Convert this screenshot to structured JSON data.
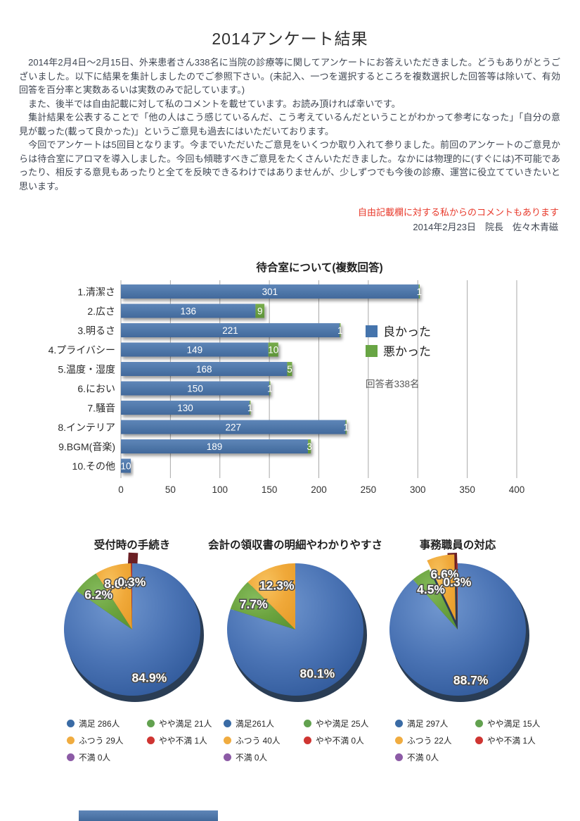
{
  "page": {
    "title": "2014アンケート結果",
    "paragraphs": [
      "　2014年2月4日～2月15日、外来患者さん338名に当院の診療等に関してアンケートにお答えいただきました。どうもありがとうございました。以下に結果を集計しましたのでご参照下さい。(未記入、一つを選択するところを複数選択した回答等は除いて、有効回答を百分率と実数あるいは実数のみで記しています。)",
      "　また、後半では自由記載に対して私のコメントを載せています。お読み頂ければ幸いです。",
      "　集計結果を公表することで「他の人はこう感じているんだ、こう考えているんだということがわかって参考になった」「自分の意見が載った(載って良かった)」というご意見も過去にはいただいております。",
      "　今回でアンケートは5回目となります。今までいただいたご意見をいくつか取り入れて参りました。前回のアンケートのご意見からは待合室にアロマを導入しました。今回も傾聴すべきご意見をたくさんいただきました。なかには物理的に(すぐには)不可能であったり、相反する意見もあったりと全てを反映できるわけではありませんが、少しずつでも今後の診療、運営に役立てていきたいと思います。"
    ],
    "comment_note": "自由記載欄に対する私からのコメントもあります",
    "comment_note_color": "#e8392b",
    "date_line": "2014年2月23日　院長　佐々木青磁"
  },
  "chart_data": [
    {
      "type": "bar",
      "title": "待合室について(複数回答)",
      "orientation": "horizontal",
      "categories": [
        "1.清潔さ",
        "2.広さ",
        "3.明るさ",
        "4.プライバシー",
        "5.温度・湿度",
        "6.におい",
        "7.騒音",
        "8.インテリア",
        "9.BGM(音楽)",
        "10.その他"
      ],
      "series": [
        {
          "name": "良かった",
          "color": "#4574AC",
          "values": [
            301,
            136,
            221,
            149,
            168,
            150,
            130,
            227,
            189,
            10
          ]
        },
        {
          "name": "悪かった",
          "color": "#68A544",
          "values": [
            1,
            9,
            1,
            10,
            5,
            1,
            1,
            1,
            3,
            0
          ]
        }
      ],
      "xticks": [
        0,
        50,
        100,
        150,
        200,
        250,
        300,
        350,
        400
      ],
      "xlim": [
        0,
        400
      ],
      "grid": "vertical",
      "legend_position": "right-inside",
      "legend_note": "回答者338名"
    },
    {
      "type": "pie",
      "title": "受付時の手続き",
      "slices": [
        {
          "label": "満足",
          "count": 286,
          "pct": 84.9,
          "color": "blue"
        },
        {
          "label": "やや満足",
          "count": 21,
          "pct": 6.2,
          "color": "green"
        },
        {
          "label": "ふつう",
          "count": 29,
          "pct": 8.6,
          "color": "orange"
        },
        {
          "label": "やや不満",
          "count": 1,
          "pct": 0.3,
          "color": "red",
          "exploded_block": true
        },
        {
          "label": "不満",
          "count": 0,
          "pct": 0,
          "color": "purple"
        }
      ],
      "legend": [
        {
          "text": "満足 286人",
          "color": "#3A6BA5"
        },
        {
          "text": "やや満足 21人",
          "color": "#62A14F"
        },
        {
          "text": "ふつう 29人",
          "color": "#F0AC40"
        },
        {
          "text": "やや不満 1人",
          "color": "#CF3532"
        },
        {
          "text": "不満 0人",
          "color": "#8C5BA6"
        }
      ]
    },
    {
      "type": "pie",
      "title": "会計の領収書の明細やわかりやすさ",
      "slices": [
        {
          "label": "満足",
          "count": 261,
          "pct": 80.1,
          "color": "blue"
        },
        {
          "label": "やや満足",
          "count": 25,
          "pct": 7.7,
          "color": "green"
        },
        {
          "label": "ふつう",
          "count": 40,
          "pct": 12.3,
          "color": "orange"
        },
        {
          "label": "やや不満",
          "count": 0,
          "pct": 0,
          "color": "red"
        },
        {
          "label": "不満",
          "count": 0,
          "pct": 0,
          "color": "purple"
        }
      ],
      "legend": [
        {
          "text": "満足261人",
          "color": "#3A6BA5"
        },
        {
          "text": "やや満足 25人",
          "color": "#62A14F"
        },
        {
          "text": "ふつう 40人",
          "color": "#F0AC40"
        },
        {
          "text": "やや不満 0人",
          "color": "#CF3532"
        },
        {
          "text": "不満 0人",
          "color": "#8C5BA6"
        }
      ]
    },
    {
      "type": "pie",
      "title": "事務職員の対応",
      "slices": [
        {
          "label": "満足",
          "count": 297,
          "pct": 88.7,
          "color": "blue"
        },
        {
          "label": "やや満足",
          "count": 15,
          "pct": 4.5,
          "color": "green"
        },
        {
          "label": "ふつう",
          "count": 22,
          "pct": 6.6,
          "color": "orange",
          "explode": 13
        },
        {
          "label": "やや不満",
          "count": 1,
          "pct": 0.3,
          "color": "red",
          "exploded_block": true
        },
        {
          "label": "不満",
          "count": 0,
          "pct": 0,
          "color": "purple"
        }
      ],
      "legend": [
        {
          "text": "満足 297人",
          "color": "#3A6BA5"
        },
        {
          "text": "やや満足 15人",
          "color": "#62A14F"
        },
        {
          "text": "ふつう 22人",
          "color": "#F0AC40"
        },
        {
          "text": "やや不満 1人",
          "color": "#CF3532"
        },
        {
          "text": "不満 0人",
          "color": "#8C5BA6"
        }
      ]
    }
  ],
  "partial_next_chart": {
    "visible": true,
    "color": "#4574AC"
  }
}
